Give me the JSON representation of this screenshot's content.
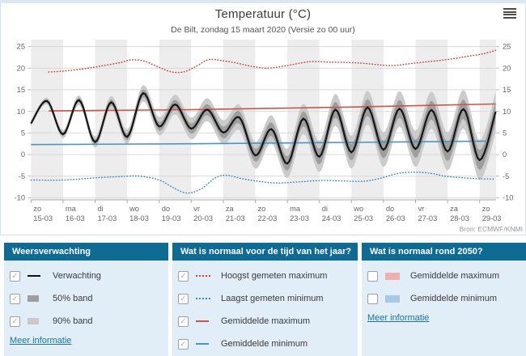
{
  "chart_card": {
    "title": "Temperatuur (°C)",
    "subtitle": "De Bilt, zondag 15 maart 2020 (Versie zo 00 uur)",
    "source": "Bron: ECMWF/KNMI",
    "menu_icon": "hamburger-menu"
  },
  "chart_data": {
    "type": "line",
    "title": "Temperatuur (°C)",
    "location": "De Bilt",
    "version": "zo 00 uur",
    "ylim": [
      -10,
      25
    ],
    "yticks": [
      25,
      20,
      15,
      10,
      5,
      0,
      -5,
      -10
    ],
    "grid": true,
    "x_axis": {
      "span_days": 14.5,
      "days": [
        {
          "dow": "zo",
          "date": "15-03"
        },
        {
          "dow": "ma",
          "date": "16-03"
        },
        {
          "dow": "di",
          "date": "17-03"
        },
        {
          "dow": "wo",
          "date": "18-03"
        },
        {
          "dow": "do",
          "date": "19-03"
        },
        {
          "dow": "vr",
          "date": "20-03"
        },
        {
          "dow": "za",
          "date": "21-03"
        },
        {
          "dow": "zo",
          "date": "22-03"
        },
        {
          "dow": "ma",
          "date": "23-03"
        },
        {
          "dow": "di",
          "date": "24-03"
        },
        {
          "dow": "wo",
          "date": "25-03"
        },
        {
          "dow": "do",
          "date": "26-03"
        },
        {
          "dow": "vr",
          "date": "27-03"
        },
        {
          "dow": "za",
          "date": "28-03"
        },
        {
          "dow": "zo",
          "date": "29-03"
        }
      ]
    },
    "series": [
      {
        "name": "Verwachting",
        "style": "solid",
        "color": "#151515",
        "width": 2.2,
        "points": [
          [
            0,
            7.2
          ],
          [
            0.5,
            12.4
          ],
          [
            1,
            4.7
          ],
          [
            1.5,
            12.6
          ],
          [
            2,
            2.9
          ],
          [
            2.5,
            12.1
          ],
          [
            3,
            4.1
          ],
          [
            3.5,
            14.2
          ],
          [
            4,
            6.5
          ],
          [
            4.5,
            11.6
          ],
          [
            5,
            6.0
          ],
          [
            5.5,
            10.4
          ],
          [
            6,
            5.1
          ],
          [
            6.5,
            8.6
          ],
          [
            7,
            -0.2
          ],
          [
            7.5,
            5.9
          ],
          [
            8,
            -2.1
          ],
          [
            8.5,
            8.3
          ],
          [
            9,
            -0.5
          ],
          [
            9.5,
            10.4
          ],
          [
            10,
            0.5
          ],
          [
            10.5,
            10.9
          ],
          [
            11,
            1.1
          ],
          [
            11.5,
            10.6
          ],
          [
            12,
            1.3
          ],
          [
            12.5,
            10.3
          ],
          [
            13,
            0.7
          ],
          [
            13.5,
            10.5
          ],
          [
            14,
            -1.3
          ],
          [
            14.5,
            9.9
          ]
        ]
      },
      {
        "name": "50% band",
        "style": "band",
        "color": "#9e9e9e",
        "half_width_by_day": [
          0.3,
          0.45,
          0.6,
          0.8,
          1.0,
          1.2,
          1.35,
          1.5,
          1.65,
          1.8,
          1.9,
          2.0,
          2.1,
          2.2,
          2.3,
          2.4
        ]
      },
      {
        "name": "90% band",
        "style": "band",
        "color": "#cbcbcb",
        "half_width_by_day": [
          0.6,
          0.95,
          1.3,
          1.7,
          2.1,
          2.5,
          2.8,
          3.1,
          3.35,
          3.6,
          3.8,
          4.0,
          4.2,
          4.4,
          4.6,
          4.8
        ]
      },
      {
        "name": "Hoogst gemeten maximum",
        "style": "dotted",
        "color": "#c9413a",
        "width": 1.5,
        "points": [
          [
            0.55,
            19.1
          ],
          [
            1,
            19.3
          ],
          [
            1.6,
            19.8
          ],
          [
            2.2,
            20.5
          ],
          [
            2.8,
            21.3
          ],
          [
            3.1,
            21.9
          ],
          [
            3.5,
            21.7
          ],
          [
            3.9,
            20.5
          ],
          [
            4.4,
            19.1
          ],
          [
            4.8,
            19.2
          ],
          [
            5.2,
            20.6
          ],
          [
            5.55,
            22.0
          ],
          [
            6,
            21.7
          ],
          [
            6.4,
            21.2
          ],
          [
            6.9,
            20.4
          ],
          [
            7.4,
            20.0
          ],
          [
            8,
            20.6
          ],
          [
            8.7,
            21.5
          ],
          [
            9.3,
            21.4
          ],
          [
            9.9,
            21.3
          ],
          [
            10.4,
            21.1
          ],
          [
            10.8,
            20.8
          ],
          [
            11.3,
            20.6
          ],
          [
            11.9,
            21.1
          ],
          [
            12.4,
            21.5
          ],
          [
            13,
            22.0
          ],
          [
            13.6,
            22.7
          ],
          [
            14.1,
            23.3
          ],
          [
            14.5,
            24.1
          ]
        ]
      },
      {
        "name": "Laagst gemeten minimum",
        "style": "dotted",
        "color": "#3b86c4",
        "width": 1.5,
        "points": [
          [
            0,
            -5.9
          ],
          [
            1,
            -5.9
          ],
          [
            2,
            -5.4
          ],
          [
            2.8,
            -5.1
          ],
          [
            3.4,
            -5.0
          ],
          [
            4.0,
            -5.9
          ],
          [
            4.4,
            -7.5
          ],
          [
            4.85,
            -8.9
          ],
          [
            5.3,
            -8.0
          ],
          [
            5.75,
            -5.4
          ],
          [
            6.1,
            -4.8
          ],
          [
            6.6,
            -5.6
          ],
          [
            7.1,
            -6.2
          ],
          [
            7.7,
            -6.6
          ],
          [
            8.4,
            -6.3
          ],
          [
            9.1,
            -6.0
          ],
          [
            9.7,
            -6.1
          ],
          [
            10.35,
            -6.2
          ],
          [
            10.9,
            -5.5
          ],
          [
            11.5,
            -4.3
          ],
          [
            12.1,
            -4.1
          ],
          [
            12.6,
            -4.5
          ],
          [
            12.9,
            -5.0
          ],
          [
            13.5,
            -5.4
          ],
          [
            14.0,
            -5.6
          ],
          [
            14.5,
            -5.7
          ]
        ]
      },
      {
        "name": "Gemiddelde maximum",
        "style": "solid",
        "color": "#cb544c",
        "width": 1.6,
        "points": [
          [
            0.55,
            10.1
          ],
          [
            5,
            10.4
          ],
          [
            10,
            11.0
          ],
          [
            14.5,
            11.7
          ]
        ]
      },
      {
        "name": "Gemiddelde minimum",
        "style": "solid",
        "color": "#4a94c8",
        "width": 1.6,
        "points": [
          [
            0,
            2.3
          ],
          [
            5,
            2.5
          ],
          [
            10,
            2.8
          ],
          [
            14.2,
            3.1
          ]
        ]
      }
    ],
    "theme": {
      "day_band_fill": "#ededed",
      "grid_color": "#d9d9d9",
      "axis_color": "#aaaaaa",
      "tick_label_color": "#666666",
      "source_color": "#999999"
    }
  },
  "panels": [
    {
      "title": "Weersverwachting",
      "items": [
        {
          "checked": true,
          "swatch": "line-black",
          "label": "Verwachting"
        },
        {
          "checked": true,
          "swatch": "band-darkgray",
          "label": "50% band"
        },
        {
          "checked": true,
          "swatch": "band-lightgray",
          "label": "90% band"
        }
      ],
      "link": "Meer informatie"
    },
    {
      "title": "Wat is normaal voor de tijd van het jaar?",
      "items": [
        {
          "checked": true,
          "swatch": "dotted-red",
          "label": "Hoogst gemeten maximum"
        },
        {
          "checked": true,
          "swatch": "dotted-blue",
          "label": "Laagst gemeten minimum"
        },
        {
          "checked": true,
          "swatch": "line-red",
          "label": "Gemiddelde maximum"
        },
        {
          "checked": true,
          "swatch": "line-blue",
          "label": "Gemiddelde minimum"
        }
      ]
    },
    {
      "title": "Wat is normaal rond 2050?",
      "items": [
        {
          "checked": false,
          "swatch": "band-pink",
          "label": "Gemiddelde maximum"
        },
        {
          "checked": false,
          "swatch": "band-blue",
          "label": "Gemiddelde minimum"
        }
      ],
      "link": "Meer informatie"
    }
  ],
  "colors": {
    "panel_header_bg": "#0d6b94",
    "panel_body_bg": "#e2eef7",
    "link": "#1a7398",
    "card_border": "#d4e2ee",
    "top_strip": "#d9e8f3",
    "check_mark": "✓"
  }
}
